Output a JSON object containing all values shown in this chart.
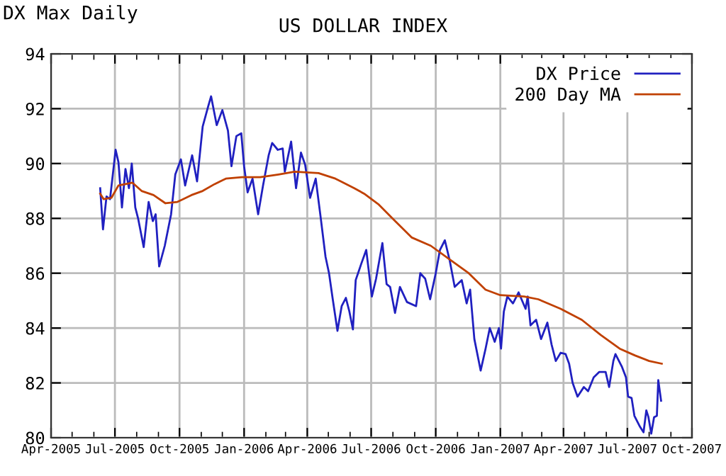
{
  "chart_data": {
    "type": "line",
    "title": "US DOLLAR INDEX",
    "subtitle": "DX Max Daily",
    "xlim": [
      "2005-04-01",
      "2007-10-01"
    ],
    "xticks": [
      {
        "value": "2005-04-01",
        "label": "Apr-2005"
      },
      {
        "value": "2005-05-01",
        "label": null
      },
      {
        "value": "2005-06-01",
        "label": null
      },
      {
        "value": "2005-07-01",
        "label": "Jul-2005"
      },
      {
        "value": "2005-08-01",
        "label": null
      },
      {
        "value": "2005-09-01",
        "label": null
      },
      {
        "value": "2005-10-01",
        "label": "Oct-2005"
      },
      {
        "value": "2005-11-01",
        "label": null
      },
      {
        "value": "2005-12-01",
        "label": null
      },
      {
        "value": "2006-01-01",
        "label": "Jan-2006"
      },
      {
        "value": "2006-02-01",
        "label": null
      },
      {
        "value": "2006-03-01",
        "label": null
      },
      {
        "value": "2006-04-01",
        "label": "Apr-2006"
      },
      {
        "value": "2006-05-01",
        "label": null
      },
      {
        "value": "2006-06-01",
        "label": null
      },
      {
        "value": "2006-07-01",
        "label": "Jul-2006"
      },
      {
        "value": "2006-08-01",
        "label": null
      },
      {
        "value": "2006-09-01",
        "label": null
      },
      {
        "value": "2006-10-01",
        "label": "Oct-2006"
      },
      {
        "value": "2006-11-01",
        "label": null
      },
      {
        "value": "2006-12-01",
        "label": null
      },
      {
        "value": "2007-01-01",
        "label": "Jan-2007"
      },
      {
        "value": "2007-02-01",
        "label": null
      },
      {
        "value": "2007-03-01",
        "label": null
      },
      {
        "value": "2007-04-01",
        "label": "Apr-2007"
      },
      {
        "value": "2007-05-01",
        "label": null
      },
      {
        "value": "2007-06-01",
        "label": null
      },
      {
        "value": "2007-07-01",
        "label": "Jul-2007"
      },
      {
        "value": "2007-08-01",
        "label": null
      },
      {
        "value": "2007-09-01",
        "label": null
      },
      {
        "value": "2007-10-01",
        "label": "Oct-2007"
      }
    ],
    "ylim": [
      80,
      94
    ],
    "yticks": [
      80,
      82,
      84,
      86,
      88,
      90,
      92,
      94
    ],
    "grid": true,
    "legend": "top right",
    "marker": "none",
    "line_style": "solid",
    "series": [
      {
        "name": "DX Price",
        "color": "#2020c0",
        "x": [
          "2005-06-10",
          "2005-06-14",
          "2005-06-19",
          "2005-06-24",
          "2005-07-02",
          "2005-07-06",
          "2005-07-11",
          "2005-07-16",
          "2005-07-21",
          "2005-07-25",
          "2005-07-30",
          "2005-08-03",
          "2005-08-11",
          "2005-08-18",
          "2005-08-24",
          "2005-08-28",
          "2005-09-02",
          "2005-09-10",
          "2005-09-19",
          "2005-09-25",
          "2005-10-03",
          "2005-10-09",
          "2005-10-19",
          "2005-10-26",
          "2005-11-03",
          "2005-11-11",
          "2005-11-15",
          "2005-11-23",
          "2005-12-01",
          "2005-12-09",
          "2005-12-14",
          "2005-12-21",
          "2005-12-28",
          "2006-01-01",
          "2006-01-06",
          "2006-01-13",
          "2006-01-21",
          "2006-01-28",
          "2006-02-05",
          "2006-02-10",
          "2006-02-18",
          "2006-02-25",
          "2006-02-28",
          "2006-03-09",
          "2006-03-16",
          "2006-03-23",
          "2006-03-29",
          "2006-04-05",
          "2006-04-13",
          "2006-04-20",
          "2006-04-27",
          "2006-05-02",
          "2006-05-07",
          "2006-05-14",
          "2006-05-20",
          "2006-05-26",
          "2006-05-31",
          "2006-06-05",
          "2006-06-09",
          "2006-06-17",
          "2006-06-24",
          "2006-07-02",
          "2006-07-08",
          "2006-07-17",
          "2006-07-23",
          "2006-07-28",
          "2006-08-04",
          "2006-08-11",
          "2006-08-21",
          "2006-09-03",
          "2006-09-09",
          "2006-09-16",
          "2006-09-23",
          "2006-10-01",
          "2006-10-07",
          "2006-10-14",
          "2006-10-21",
          "2006-10-28",
          "2006-11-07",
          "2006-11-14",
          "2006-11-19",
          "2006-11-25",
          "2006-12-04",
          "2006-12-11",
          "2006-12-17",
          "2006-12-24",
          "2006-12-30",
          "2007-01-02",
          "2007-01-06",
          "2007-01-11",
          "2007-01-19",
          "2007-01-27",
          "2007-02-06",
          "2007-02-09",
          "2007-02-13",
          "2007-02-21",
          "2007-02-28",
          "2007-03-09",
          "2007-03-15",
          "2007-03-21",
          "2007-03-28",
          "2007-04-04",
          "2007-04-09",
          "2007-04-14",
          "2007-04-21",
          "2007-04-30",
          "2007-05-06",
          "2007-05-14",
          "2007-05-22",
          "2007-05-31",
          "2007-06-05",
          "2007-06-11",
          "2007-06-14",
          "2007-06-23",
          "2007-06-29",
          "2007-07-02",
          "2007-07-07",
          "2007-07-11",
          "2007-07-19",
          "2007-07-24",
          "2007-07-28",
          "2007-07-31",
          "2007-08-04",
          "2007-08-08",
          "2007-08-12",
          "2007-08-14",
          "2007-08-18"
        ],
        "values": [
          89.1,
          87.6,
          88.8,
          88.7,
          90.5,
          90.05,
          88.4,
          89.8,
          89.1,
          90.0,
          88.4,
          88.0,
          86.95,
          88.6,
          87.9,
          88.15,
          86.25,
          87.0,
          88.15,
          89.6,
          90.15,
          89.2,
          90.3,
          89.35,
          91.35,
          92.1,
          92.45,
          91.4,
          91.95,
          91.2,
          89.9,
          91.0,
          91.1,
          89.9,
          88.95,
          89.45,
          88.15,
          89.2,
          90.3,
          90.75,
          90.5,
          90.55,
          89.7,
          90.8,
          89.1,
          90.4,
          89.95,
          88.75,
          89.45,
          88.05,
          86.6,
          86.0,
          85.1,
          83.9,
          84.8,
          85.1,
          84.6,
          83.95,
          85.75,
          86.35,
          86.85,
          85.15,
          85.8,
          87.1,
          85.6,
          85.5,
          84.55,
          85.5,
          84.95,
          84.8,
          86.0,
          85.8,
          85.05,
          86.0,
          86.85,
          87.2,
          86.45,
          85.5,
          85.75,
          84.9,
          85.4,
          83.6,
          82.45,
          83.25,
          84.0,
          83.5,
          84.0,
          83.25,
          84.6,
          85.15,
          84.9,
          85.3,
          84.7,
          85.15,
          84.1,
          84.3,
          83.6,
          84.2,
          83.4,
          82.8,
          83.1,
          83.05,
          82.7,
          82.0,
          81.5,
          81.85,
          81.7,
          82.2,
          82.4,
          82.4,
          81.85,
          82.8,
          83.05,
          82.6,
          82.2,
          81.5,
          81.45,
          80.8,
          80.4,
          80.2,
          81.0,
          80.75,
          80.15,
          80.75,
          80.8,
          82.1,
          81.35
        ]
      },
      {
        "name": "200 Day MA",
        "color": "#c04000",
        "x": [
          "2005-06-10",
          "2005-06-15",
          "2005-06-26",
          "2005-07-06",
          "2005-07-26",
          "2005-08-08",
          "2005-08-25",
          "2005-09-11",
          "2005-09-28",
          "2005-10-18",
          "2005-11-03",
          "2005-11-20",
          "2005-12-06",
          "2005-12-29",
          "2006-01-24",
          "2006-02-19",
          "2006-03-14",
          "2006-04-17",
          "2006-05-11",
          "2006-06-07",
          "2006-06-21",
          "2006-07-12",
          "2006-08-01",
          "2006-08-28",
          "2006-09-24",
          "2006-10-21",
          "2006-11-17",
          "2006-12-11",
          "2007-01-01",
          "2007-02-04",
          "2007-02-24",
          "2007-03-28",
          "2007-04-27",
          "2007-05-24",
          "2007-06-20",
          "2007-07-12",
          "2007-08-01",
          "2007-08-19"
        ],
        "values": [
          88.9,
          88.7,
          88.75,
          89.2,
          89.3,
          89.0,
          88.85,
          88.55,
          88.6,
          88.85,
          89.0,
          89.25,
          89.45,
          89.5,
          89.5,
          89.6,
          89.7,
          89.65,
          89.45,
          89.1,
          88.9,
          88.5,
          87.98,
          87.3,
          87.0,
          86.5,
          86.0,
          85.4,
          85.2,
          85.15,
          85.05,
          84.7,
          84.3,
          83.75,
          83.25,
          83.0,
          82.8,
          82.7
        ]
      }
    ]
  }
}
